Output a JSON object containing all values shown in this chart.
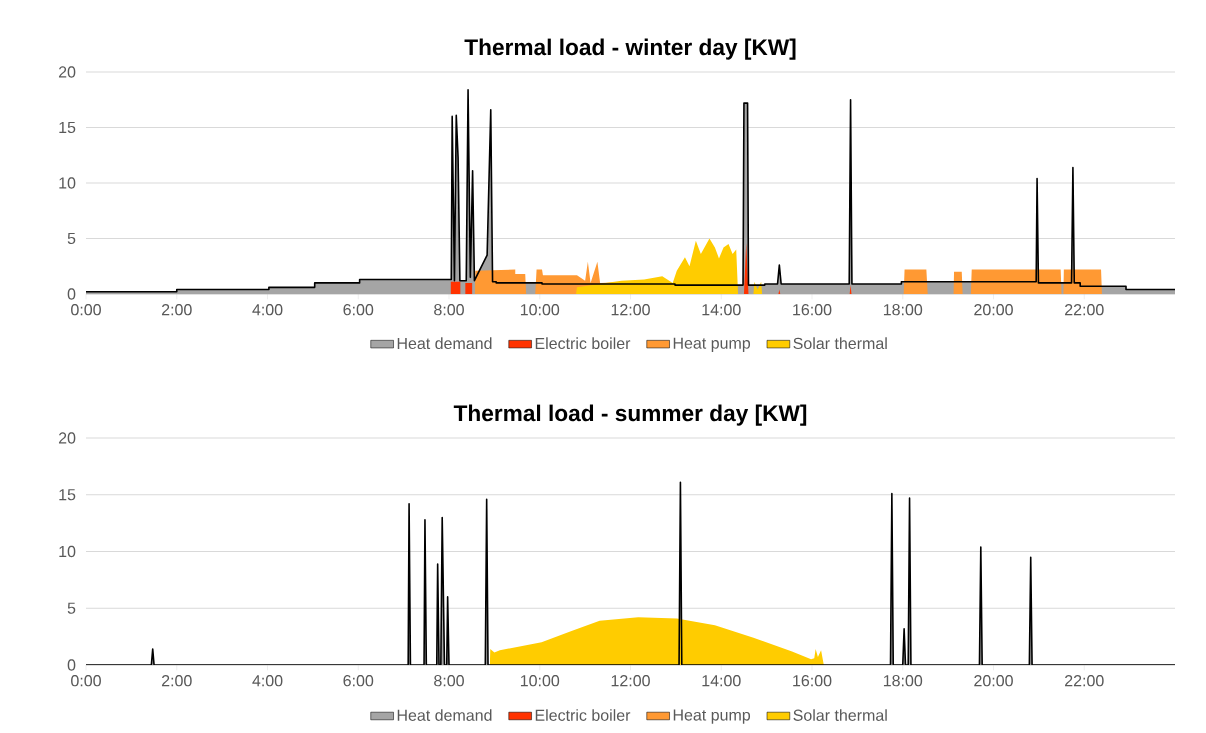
{
  "chart_data": [
    {
      "type": "area",
      "title": "Thermal load - winter day [KW]",
      "xlim": [
        0,
        24
      ],
      "ylim": [
        0,
        20
      ],
      "xticks": [
        {
          "value": 0,
          "label": "0:00"
        },
        {
          "value": 2,
          "label": "2:00"
        },
        {
          "value": 4,
          "label": "4:00"
        },
        {
          "value": 6,
          "label": "6:00"
        },
        {
          "value": 8,
          "label": "8:00"
        },
        {
          "value": 10,
          "label": "10:00"
        },
        {
          "value": 12,
          "label": "12:00"
        },
        {
          "value": 14,
          "label": "14:00"
        },
        {
          "value": 16,
          "label": "16:00"
        },
        {
          "value": 18,
          "label": "18:00"
        },
        {
          "value": 20,
          "label": "20:00"
        },
        {
          "value": 22,
          "label": "22:00"
        }
      ],
      "yticks": [
        0,
        5,
        10,
        15,
        20
      ],
      "grid": "y",
      "legend": "bottom",
      "series": [
        {
          "name": "Heat demand",
          "color": "#a5a5a5",
          "x": [
            0,
            2,
            2,
            4.03,
            4.03,
            5.04,
            5.04,
            6.03,
            6.03,
            8.05,
            8.07,
            8.12,
            8.16,
            8.2,
            8.24,
            8.38,
            8.42,
            8.47,
            8.52,
            8.56,
            8.84,
            8.92,
            8.96,
            9.04,
            9.04,
            10.05,
            10.05,
            12.98,
            12.98,
            14.48,
            14.5,
            14.58,
            14.6,
            14.96,
            14.96,
            15.24,
            15.28,
            15.32,
            16.82,
            16.85,
            16.88,
            17.97,
            17.97,
            20.94,
            20.96,
            20.99,
            21.72,
            21.75,
            21.78,
            21.91,
            21.91,
            22.92,
            22.92,
            24
          ],
          "values": [
            0.2,
            0.2,
            0.4,
            0.4,
            0.6,
            0.6,
            1.0,
            1.0,
            1.3,
            1.3,
            16.0,
            1.2,
            16.1,
            12.3,
            1.2,
            1.2,
            18.4,
            1.5,
            11.1,
            1.2,
            3.5,
            16.6,
            1.1,
            1.1,
            1.0,
            1.0,
            0.9,
            0.9,
            0.8,
            0.8,
            17.2,
            17.2,
            0.8,
            0.8,
            0.9,
            0.9,
            2.6,
            0.9,
            0.9,
            17.5,
            0.9,
            0.9,
            1.1,
            1.1,
            10.4,
            1.0,
            1.0,
            11.4,
            1.0,
            1.0,
            0.7,
            0.7,
            0.4,
            0.4
          ]
        },
        {
          "name": "Electric boiler",
          "color": "#ff3300",
          "x": [
            8.04,
            8.04,
            8.25,
            8.25,
            8.36,
            8.36,
            8.51,
            8.51,
            14.5,
            14.55,
            14.6,
            15.26,
            15.28,
            15.3,
            16.83,
            16.85,
            16.87
          ],
          "values": [
            0,
            1.1,
            1.1,
            0,
            0,
            1.0,
            1.0,
            0,
            0,
            4.6,
            0,
            0,
            0.4,
            0,
            0,
            0.8,
            0
          ]
        },
        {
          "name": "Heat pump",
          "color": "#ff9933",
          "x": [
            8.57,
            8.58,
            9.46,
            9.46,
            9.68,
            9.7,
            9.9,
            9.93,
            10.05,
            10.07,
            10.82,
            11.0,
            11.06,
            11.12,
            11.27,
            11.33,
            12.5,
            12.55,
            18.02,
            18.04,
            18.52,
            18.55,
            19.12,
            19.13,
            19.3,
            19.32,
            19.5,
            19.52,
            21.48,
            21.5,
            21.54,
            21.55,
            22.37,
            22.39
          ],
          "values": [
            0,
            2.1,
            2.2,
            1.8,
            1.8,
            0,
            0,
            2.2,
            2.2,
            1.7,
            1.7,
            1.2,
            2.9,
            1.0,
            2.9,
            1.0,
            1.2,
            0,
            0,
            2.2,
            2.2,
            0,
            0,
            2.0,
            2.0,
            0,
            0,
            2.2,
            2.2,
            0,
            0,
            2.2,
            2.2,
            0
          ]
        },
        {
          "name": "Solar thermal",
          "color": "#ffcc00",
          "x": [
            10.8,
            10.82,
            11.3,
            11.8,
            12.3,
            12.7,
            12.93,
            13.02,
            13.2,
            13.3,
            13.44,
            13.55,
            13.74,
            13.86,
            13.95,
            14.05,
            14.16,
            14.25,
            14.33,
            14.37,
            14.71,
            14.73,
            14.8,
            14.88,
            14.9
          ],
          "values": [
            0,
            0.6,
            0.9,
            1.2,
            1.3,
            1.6,
            1.0,
            2.1,
            3.3,
            2.5,
            4.8,
            3.6,
            5.0,
            4.2,
            3.2,
            4.2,
            4.5,
            3.6,
            4.0,
            0,
            0,
            1.1,
            0.4,
            1.1,
            0
          ]
        }
      ]
    },
    {
      "type": "area",
      "title": "Thermal load - summer day [KW]",
      "xlim": [
        0,
        24
      ],
      "ylim": [
        0,
        20
      ],
      "xticks": [
        {
          "value": 0,
          "label": "0:00"
        },
        {
          "value": 2,
          "label": "2:00"
        },
        {
          "value": 4,
          "label": "4:00"
        },
        {
          "value": 6,
          "label": "6:00"
        },
        {
          "value": 8,
          "label": "8:00"
        },
        {
          "value": 10,
          "label": "10:00"
        },
        {
          "value": 12,
          "label": "12:00"
        },
        {
          "value": 14,
          "label": "14:00"
        },
        {
          "value": 16,
          "label": "16:00"
        },
        {
          "value": 18,
          "label": "18:00"
        },
        {
          "value": 20,
          "label": "20:00"
        },
        {
          "value": 22,
          "label": "22:00"
        }
      ],
      "yticks": [
        0,
        5,
        10,
        15,
        20
      ],
      "grid": "y",
      "legend": "bottom",
      "series": [
        {
          "name": "Heat demand",
          "color": "#a5a5a5",
          "x": [
            0,
            1.44,
            1.47,
            1.5,
            7.1,
            7.12,
            7.15,
            7.45,
            7.47,
            7.5,
            7.73,
            7.75,
            7.78,
            7.82,
            7.85,
            7.9,
            7.95,
            7.97,
            8.0,
            8.8,
            8.83,
            8.86,
            13.07,
            13.1,
            13.13,
            17.73,
            17.76,
            17.79,
            18.0,
            18.03,
            18.06,
            18.12,
            18.15,
            18.18,
            19.69,
            19.72,
            19.75,
            20.79,
            20.82,
            20.85,
            24
          ],
          "values": [
            0,
            0,
            1.4,
            0,
            0,
            14.2,
            0,
            0,
            12.8,
            0,
            0,
            8.9,
            0,
            0,
            13.0,
            0,
            0,
            6.0,
            0,
            0,
            14.6,
            0,
            0,
            16.1,
            0,
            0,
            15.1,
            0,
            0,
            3.2,
            0,
            0,
            14.7,
            0,
            0,
            10.4,
            0,
            0,
            9.5,
            0,
            0
          ]
        },
        {
          "name": "Electric boiler",
          "color": "#ff3300"
        },
        {
          "name": "Heat pump",
          "color": "#ff9933"
        },
        {
          "name": "Solar thermal",
          "color": "#ffcc00",
          "x": [
            8.9,
            8.91,
            9.0,
            9.12,
            10.04,
            10.7,
            11.32,
            12.17,
            13.02,
            13.86,
            14.71,
            15.56,
            15.98,
            16.05,
            16.08,
            16.13,
            16.2,
            16.26
          ],
          "values": [
            0,
            1.4,
            1.1,
            1.3,
            2.0,
            3.0,
            3.9,
            4.2,
            4.1,
            3.5,
            2.4,
            1.2,
            0.5,
            0.6,
            1.4,
            0.7,
            1.3,
            0
          ]
        }
      ]
    }
  ]
}
